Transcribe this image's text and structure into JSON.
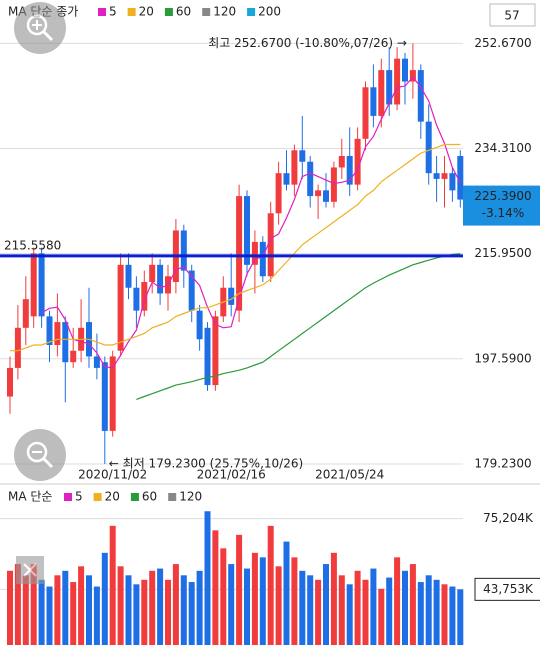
{
  "chart_data": [
    {
      "type": "candlestick",
      "legend_title": "MA 단순 종가",
      "count_label": "57",
      "categories": [
        null,
        null,
        null,
        null,
        null,
        null,
        null,
        null,
        null,
        null,
        null,
        null,
        null,
        "2020/11/02",
        null,
        null,
        null,
        null,
        null,
        null,
        null,
        null,
        null,
        null,
        null,
        null,
        null,
        null,
        "2021/02/16",
        null,
        null,
        null,
        null,
        null,
        null,
        null,
        null,
        null,
        null,
        null,
        null,
        null,
        null,
        "2021/05/24",
        null,
        null,
        null,
        null,
        null,
        null,
        null,
        null,
        null,
        null,
        null,
        null,
        null,
        null
      ],
      "open": [
        191,
        196,
        203,
        205,
        216,
        205,
        200,
        204,
        197,
        199,
        204,
        198,
        197,
        185,
        199,
        214,
        210,
        206,
        211,
        214,
        209,
        211,
        220,
        213,
        206,
        203,
        193,
        205,
        210,
        206,
        226,
        214,
        218,
        212,
        223,
        230,
        228,
        234,
        232,
        226,
        227,
        225,
        231,
        233,
        228,
        236,
        245,
        240,
        248,
        242,
        250,
        246,
        248,
        239,
        230,
        229,
        230,
        233
      ],
      "high": [
        198,
        207,
        212,
        217,
        217,
        206,
        209,
        205,
        203,
        208,
        210,
        202,
        198,
        199,
        216,
        216,
        212,
        213,
        216,
        215,
        214,
        222,
        221,
        214,
        207,
        204,
        206,
        212,
        216,
        228,
        227,
        220,
        219,
        225,
        232,
        234,
        235,
        240,
        233,
        228,
        230,
        232,
        236,
        238,
        238,
        246,
        249,
        250,
        252,
        252,
        251,
        252.67,
        249,
        242,
        233,
        233,
        231,
        234
      ],
      "low": [
        188,
        194,
        200,
        203,
        203,
        197,
        198,
        190,
        196,
        197,
        196,
        194,
        179.23,
        184,
        198,
        208,
        203,
        205,
        209,
        207,
        206,
        209,
        210,
        204,
        199,
        192,
        192,
        204,
        205,
        204,
        212,
        209,
        211,
        211,
        221,
        227,
        226,
        229,
        224,
        222,
        224,
        224,
        229,
        226,
        227,
        234,
        238,
        238,
        240,
        241,
        242,
        243,
        236,
        228,
        225,
        224,
        225,
        224
      ],
      "close": [
        196,
        203,
        208,
        216,
        205,
        200,
        204,
        197,
        199,
        203,
        198,
        196,
        185,
        198,
        214,
        210,
        206,
        211,
        214,
        209,
        212,
        220,
        213,
        206,
        201,
        193,
        205,
        210,
        207,
        226,
        214,
        218,
        212,
        223,
        230,
        228,
        234,
        232,
        226,
        227,
        225,
        231,
        233,
        228,
        236,
        245,
        240,
        248,
        242,
        250,
        246,
        248,
        239,
        230,
        229,
        230,
        227,
        225.39
      ],
      "up_color": "#f03c3c",
      "down_color": "#1e6ee6",
      "series": [
        {
          "name": "5",
          "color": "#e020c0",
          "values": [
            null,
            null,
            null,
            null,
            205.6,
            206.4,
            206.6,
            204.4,
            201,
            200.6,
            200.2,
            198.6,
            196.2,
            196,
            198.2,
            200.6,
            202.6,
            207.8,
            211,
            210,
            210.4,
            213.2,
            213.6,
            212,
            210.4,
            206.6,
            203.6,
            203,
            203.2,
            208.2,
            212.4,
            215,
            215.4,
            218.6,
            219.4,
            222.2,
            225.4,
            229.4,
            230,
            229.4,
            228.8,
            228.2,
            228.4,
            228.8,
            230.6,
            234.6,
            236.4,
            239.4,
            242.2,
            245,
            245.2,
            246.8,
            245,
            242.6,
            238.4,
            235.2,
            231,
            228.3
          ]
        },
        {
          "name": "20",
          "color": "#f0b020",
          "values": [
            199,
            199,
            199.5,
            200,
            200,
            200.5,
            201,
            201,
            201,
            201,
            201,
            200.5,
            200,
            200,
            200.5,
            201,
            201.5,
            202,
            203,
            203.5,
            204,
            205,
            205.5,
            206,
            206.5,
            206.5,
            207,
            207.5,
            208,
            209,
            209.5,
            210,
            210.5,
            211.5,
            213,
            214.5,
            216,
            217.5,
            218.5,
            219.5,
            220.5,
            221.5,
            222.5,
            223.5,
            224.5,
            226,
            227,
            228.5,
            229.5,
            230.5,
            231.5,
            232.5,
            233.5,
            234,
            234.5,
            235,
            235,
            235
          ]
        },
        {
          "name": "60",
          "color": "#2a9a3a",
          "values": [
            null,
            null,
            null,
            null,
            null,
            null,
            null,
            null,
            null,
            null,
            null,
            null,
            null,
            null,
            null,
            null,
            190.5,
            191,
            191.5,
            192,
            192.5,
            193,
            193.3,
            193.6,
            194,
            194.3,
            194.6,
            195,
            195.3,
            195.6,
            196,
            196.5,
            197,
            198,
            199,
            200,
            201,
            202,
            203,
            204,
            205,
            206,
            207,
            208,
            209,
            210,
            210.8,
            211.5,
            212.2,
            212.8,
            213.4,
            214,
            214.4,
            214.8,
            215.2,
            215.5,
            215.8,
            215.95
          ]
        },
        {
          "name": "120",
          "color": "#888888"
        },
        {
          "name": "200",
          "color": "#18a8d8"
        }
      ],
      "ylim": [
        178.0,
        255.0
      ],
      "yticks": [
        {
          "value": 252.67,
          "label": "252.6700"
        },
        {
          "value": 234.31,
          "label": "234.3100"
        },
        {
          "value": 215.95,
          "label": "215.9500"
        },
        {
          "value": 197.59,
          "label": "197.5900"
        },
        {
          "value": 179.23,
          "label": "179.2300"
        }
      ],
      "grid": true,
      "hline": {
        "value": 215.558,
        "label": "215.5580",
        "color": "#0a1ed2"
      },
      "last_price": {
        "value": 225.39,
        "label": "225.3900"
      },
      "change": {
        "value": -3.14,
        "label": "-3.14%"
      },
      "high_annotation": "최고 252.6700 (-10.80%,07/26) →",
      "low_annotation": "← 최저 179.2300 (25.75%,10/26)"
    },
    {
      "type": "bar",
      "legend_title": "MA 단순",
      "values": [
        52000,
        55000,
        50000,
        55000,
        48000,
        45000,
        50000,
        52000,
        47000,
        54000,
        50000,
        45000,
        60000,
        72000,
        54000,
        50000,
        46000,
        48000,
        52000,
        53000,
        48000,
        55000,
        50000,
        47000,
        52000,
        78500,
        70000,
        62000,
        55000,
        68000,
        53000,
        60000,
        58000,
        72000,
        54000,
        65000,
        58000,
        52000,
        50000,
        48000,
        55000,
        60000,
        50000,
        46000,
        52000,
        48000,
        53000,
        44000,
        49000,
        58000,
        52000,
        55000,
        47000,
        50000,
        48000,
        46000,
        45000,
        43753
      ],
      "series": [
        {
          "name": "5",
          "color": "#e020c0"
        },
        {
          "name": "20",
          "color": "#f0b020"
        },
        {
          "name": "60",
          "color": "#2a9a3a"
        },
        {
          "name": "120",
          "color": "#888888"
        }
      ],
      "ylim": [
        19000,
        83500
      ],
      "yticks": [
        {
          "value": 75204,
          "label": "75,204K"
        },
        {
          "value": 43753,
          "label": "43,753K"
        }
      ]
    }
  ]
}
